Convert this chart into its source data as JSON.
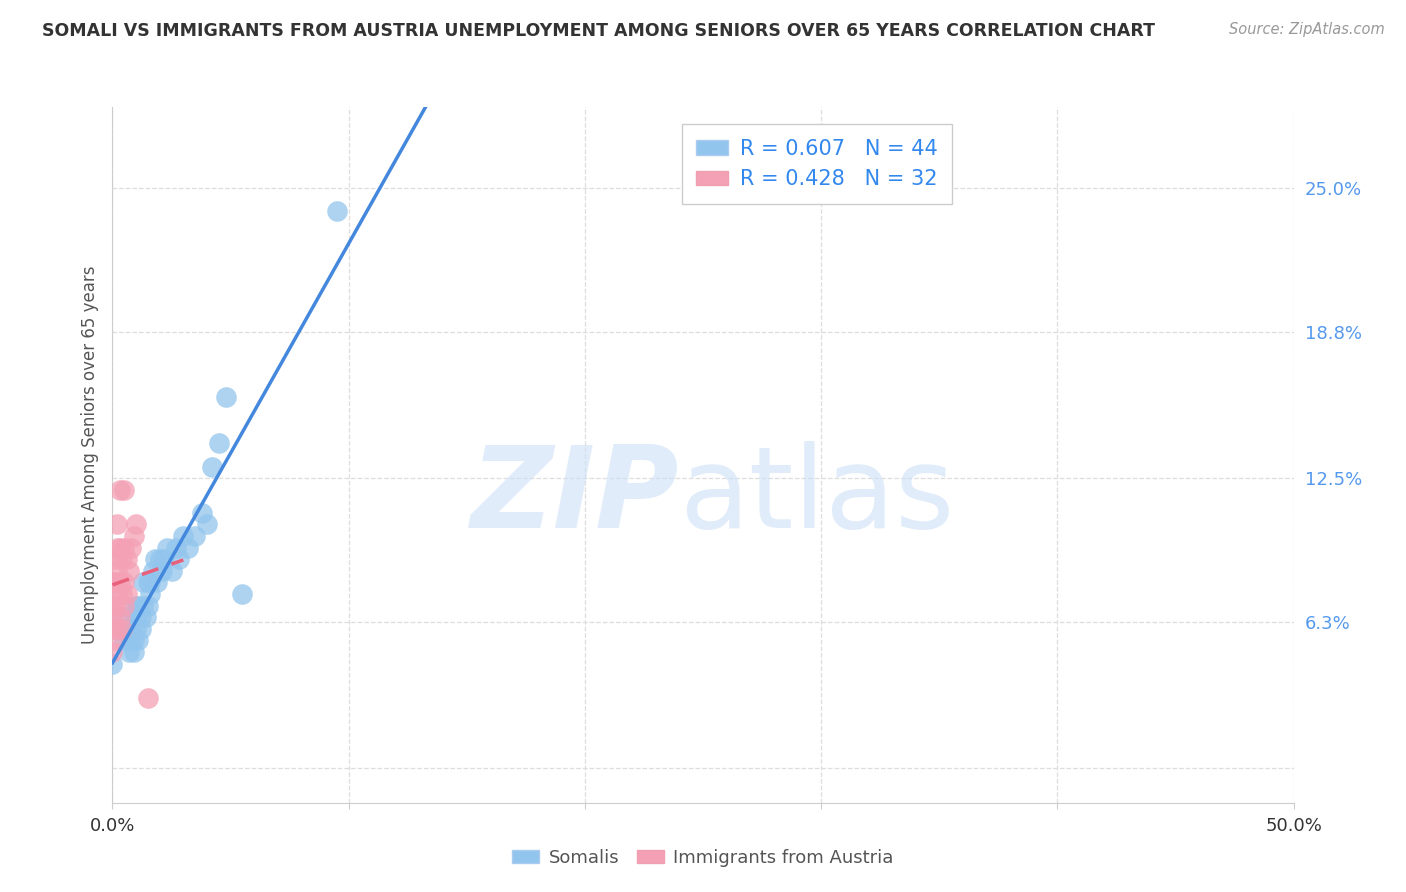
{
  "title": "SOMALI VS IMMIGRANTS FROM AUSTRIA UNEMPLOYMENT AMONG SENIORS OVER 65 YEARS CORRELATION CHART",
  "source": "Source: ZipAtlas.com",
  "ylabel": "Unemployment Among Seniors over 65 years",
  "xlim": [
    0,
    0.5
  ],
  "ylim": [
    -0.015,
    0.285
  ],
  "yticks": [
    0.0,
    0.063,
    0.125,
    0.188,
    0.25
  ],
  "ytick_labels": [
    "",
    "6.3%",
    "12.5%",
    "18.8%",
    "25.0%"
  ],
  "xticks": [
    0.0,
    0.1,
    0.2,
    0.3,
    0.4,
    0.5
  ],
  "xtick_labels": [
    "0.0%",
    "",
    "",
    "",
    "",
    "50.0%"
  ],
  "somali_R": 0.607,
  "somali_N": 44,
  "austria_R": 0.428,
  "austria_N": 32,
  "somali_color": "#92C5ED",
  "austria_color": "#F4A0B5",
  "somali_line_color": "#4488DD",
  "austria_line_color": "#E8607A",
  "somali_x": [
    0.0,
    0.005,
    0.005,
    0.005,
    0.007,
    0.007,
    0.008,
    0.008,
    0.009,
    0.009,
    0.01,
    0.01,
    0.01,
    0.011,
    0.011,
    0.012,
    0.012,
    0.013,
    0.013,
    0.014,
    0.015,
    0.015,
    0.016,
    0.016,
    0.017,
    0.018,
    0.019,
    0.02,
    0.021,
    0.022,
    0.023,
    0.025,
    0.027,
    0.028,
    0.03,
    0.032,
    0.035,
    0.038,
    0.04,
    0.042,
    0.045,
    0.048,
    0.055,
    0.095
  ],
  "somali_y": [
    0.045,
    0.055,
    0.06,
    0.065,
    0.05,
    0.06,
    0.055,
    0.06,
    0.05,
    0.055,
    0.06,
    0.065,
    0.07,
    0.055,
    0.07,
    0.06,
    0.065,
    0.07,
    0.08,
    0.065,
    0.07,
    0.08,
    0.075,
    0.08,
    0.085,
    0.09,
    0.08,
    0.09,
    0.085,
    0.09,
    0.095,
    0.085,
    0.095,
    0.09,
    0.1,
    0.095,
    0.1,
    0.11,
    0.105,
    0.13,
    0.14,
    0.16,
    0.075,
    0.24
  ],
  "austria_x": [
    0.0,
    0.0,
    0.0,
    0.0,
    0.0,
    0.001,
    0.001,
    0.001,
    0.001,
    0.002,
    0.002,
    0.002,
    0.002,
    0.002,
    0.003,
    0.003,
    0.003,
    0.003,
    0.004,
    0.004,
    0.004,
    0.005,
    0.005,
    0.005,
    0.005,
    0.006,
    0.006,
    0.007,
    0.008,
    0.009,
    0.01,
    0.015
  ],
  "austria_y": [
    0.05,
    0.06,
    0.065,
    0.07,
    0.08,
    0.055,
    0.07,
    0.08,
    0.09,
    0.06,
    0.075,
    0.085,
    0.095,
    0.105,
    0.065,
    0.08,
    0.095,
    0.12,
    0.06,
    0.075,
    0.09,
    0.07,
    0.08,
    0.095,
    0.12,
    0.075,
    0.09,
    0.085,
    0.095,
    0.1,
    0.105,
    0.03
  ],
  "watermark_zip": "ZIP",
  "watermark_atlas": "atlas"
}
